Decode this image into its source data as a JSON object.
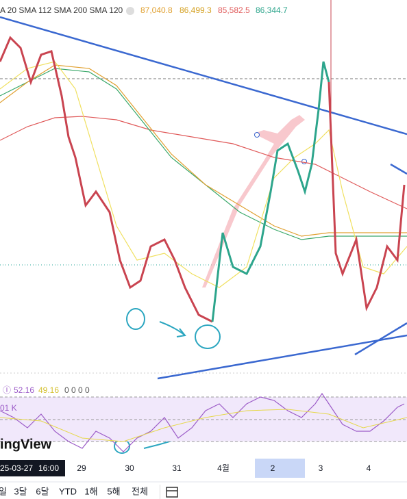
{
  "legend": {
    "studies": "A 20 SMA 112 SMA 200 SMA 120",
    "values": [
      "87,040.8",
      "86,499.3",
      "85,582.5",
      "86,344.7"
    ]
  },
  "indicator": {
    "values": [
      "52.16",
      "49.16"
    ],
    "extra": "0 0 0 0",
    "volume": "01 K"
  },
  "watermark": "ingView",
  "time_axis": {
    "cursor_date": "25-03-27",
    "cursor_time": "16:00",
    "labels": [
      "29",
      "30",
      "31",
      "4월",
      "2",
      "3",
      "4"
    ]
  },
  "toolbar": {
    "ranges": [
      "일",
      "3달",
      "6달",
      "YTD",
      "1해",
      "5해",
      "전체"
    ]
  }
}
